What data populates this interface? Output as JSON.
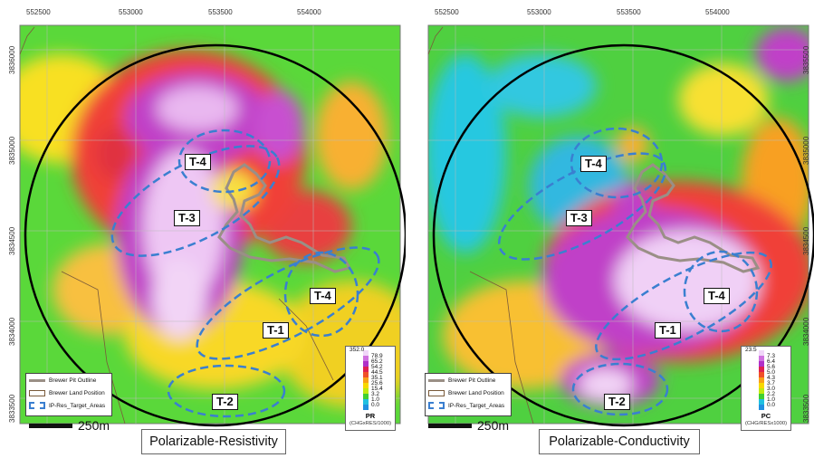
{
  "left_panel": {
    "title": "Polarizable-Resistivity",
    "x_ticks": [
      "552500",
      "553000",
      "553500",
      "554000"
    ],
    "y_ticks": [
      "3836000",
      "3835000",
      "3834500",
      "3834000",
      "3833500"
    ],
    "targets": [
      "T-4",
      "T-3",
      "T-4",
      "T-1",
      "T-2"
    ],
    "colorbar": {
      "ticks": [
        "352.0",
        "78.9",
        "65.2",
        "54.2",
        "44.5",
        "35.1",
        "25.6",
        "15.4",
        "3.2",
        "1.0",
        "0.0"
      ],
      "units_title": "PR",
      "units_sub": "(CHGxRES/1000)",
      "colors": [
        "#f0d6f8",
        "#d070e0",
        "#b030c8",
        "#e02050",
        "#f05028",
        "#f8a018",
        "#f8d800",
        "#c0ea10",
        "#40d030",
        "#20c0e0",
        "#2090e0"
      ]
    }
  },
  "right_panel": {
    "title": "Polarizable-Conductivity",
    "x_ticks": [
      "552500",
      "553000",
      "553500",
      "554000"
    ],
    "y_ticks": [
      "3835500",
      "3835000",
      "3834500",
      "3834000",
      "3833500"
    ],
    "targets": [
      "T-4",
      "T-3",
      "T-4",
      "T-1",
      "T-2"
    ],
    "colorbar": {
      "ticks": [
        "23.5",
        "7.3",
        "6.4",
        "5.6",
        "5.0",
        "4.3",
        "3.7",
        "3.0",
        "2.2",
        "1.0",
        "0.0"
      ],
      "units_title": "PC",
      "units_sub": "(CHG/RESx1000)",
      "colors": [
        "#f0d6f8",
        "#d070e0",
        "#b030c8",
        "#e02050",
        "#f05028",
        "#f8a018",
        "#f8d800",
        "#c0ea10",
        "#40d030",
        "#20c0e0",
        "#2090e0"
      ]
    }
  },
  "legend": {
    "items": [
      "Brewer Pit Outline",
      "Brewer Land Position",
      "IP-Res_Target_Areas"
    ]
  },
  "scale_label": "250m",
  "colors": {
    "pit_outline": "#9a8f86",
    "target_outline": "#3a7fd0",
    "survey_circle": "#000000"
  }
}
